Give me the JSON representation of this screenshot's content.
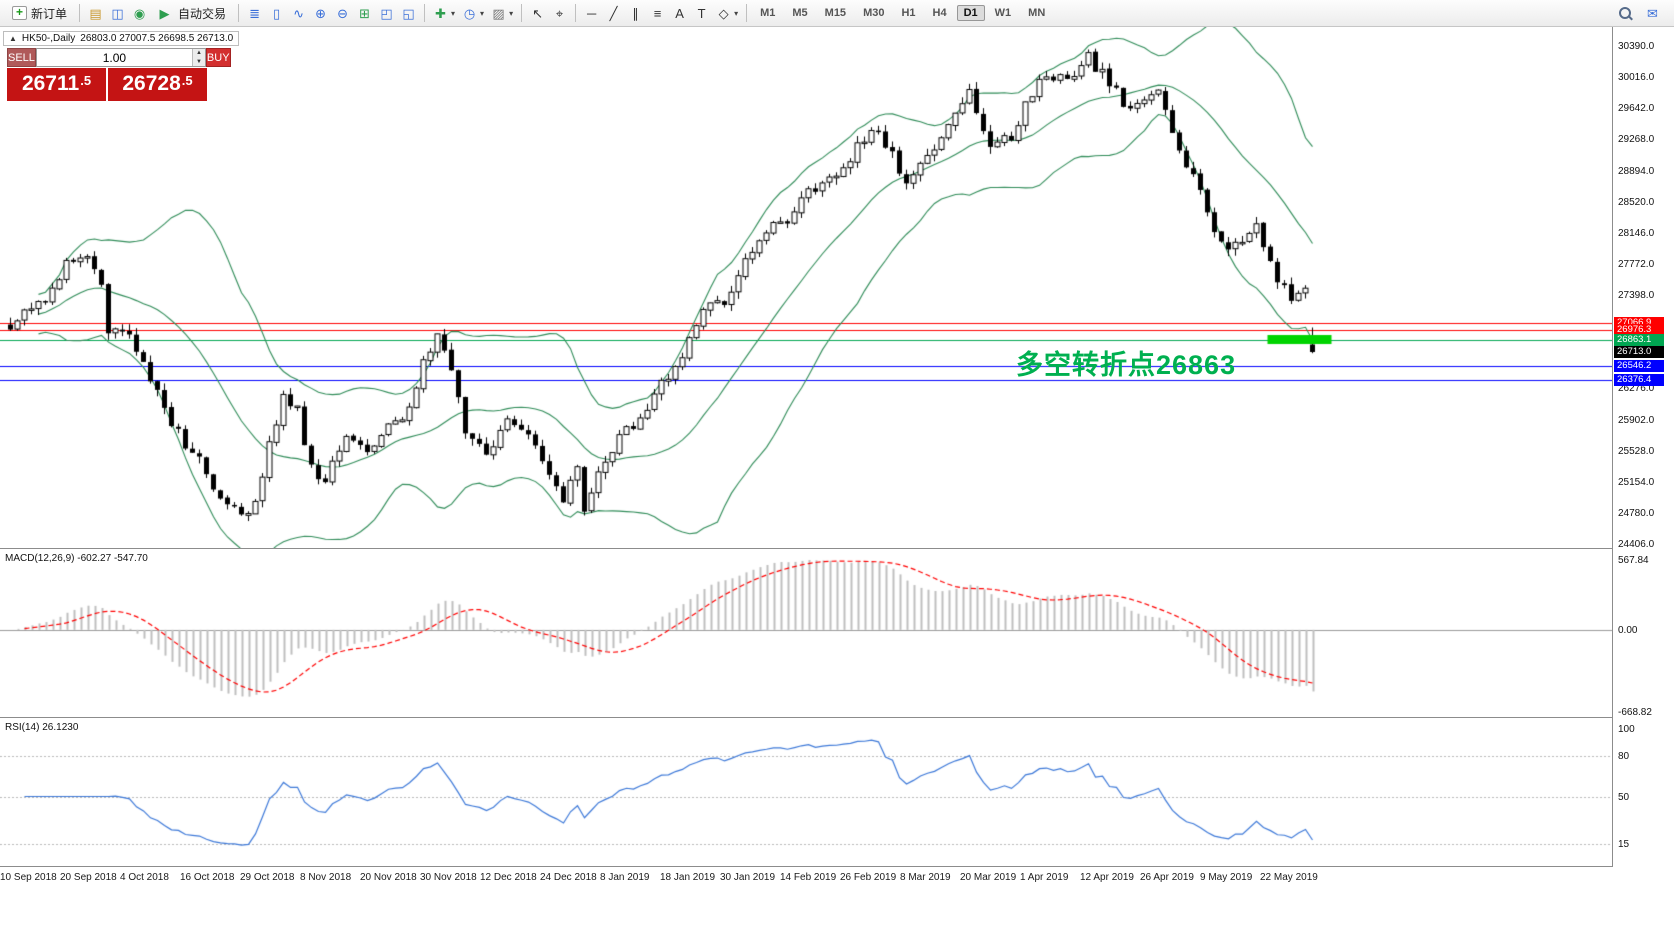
{
  "toolbar": {
    "new_order_label": "新订单",
    "autotrade_label": "自动交易",
    "icon_groups": [
      {
        "id": "tb-g1",
        "items": [
          {
            "name": "market-watch-icon",
            "glyph": "▤",
            "color": "#c9972c"
          },
          {
            "name": "data-window-icon",
            "glyph": "◫",
            "color": "#3a6fd8"
          },
          {
            "name": "navigator-icon",
            "glyph": "◉",
            "color": "#2e9e4f"
          }
        ]
      },
      {
        "id": "tb-g2",
        "items": [
          {
            "name": "bars-chart-icon",
            "glyph": "≣",
            "color": "#3a6fd8"
          },
          {
            "name": "candlestick-chart-icon",
            "glyph": "▯",
            "color": "#3a6fd8"
          },
          {
            "name": "line-chart-icon",
            "glyph": "∿",
            "color": "#3a6fd8"
          },
          {
            "name": "zoom-in-icon",
            "glyph": "⊕",
            "color": "#3a6fd8"
          },
          {
            "name": "zoom-out-icon",
            "glyph": "⊖",
            "color": "#3a6fd8"
          },
          {
            "name": "tile-windows-icon",
            "glyph": "⊞",
            "color": "#2e9e4f"
          },
          {
            "name": "cascade-windows-icon",
            "glyph": "◰",
            "color": "#3a6fd8"
          },
          {
            "name": "tile-vertical-icon",
            "glyph": "◱",
            "color": "#3a6fd8"
          }
        ]
      },
      {
        "id": "tb-g3",
        "items": [
          {
            "name": "indicators-icon",
            "glyph": "✚",
            "color": "#2e9e4f",
            "caret": true
          },
          {
            "name": "periods-icon",
            "glyph": "◷",
            "color": "#3a6fd8",
            "caret": true
          },
          {
            "name": "templates-icon",
            "glyph": "▨",
            "color": "#777777",
            "caret": true
          }
        ]
      },
      {
        "id": "tb-g4",
        "items": [
          {
            "name": "cursor-icon",
            "glyph": "↖",
            "color": "#333333"
          },
          {
            "name": "crosshair-icon",
            "glyph": "⌖",
            "color": "#333333"
          }
        ]
      },
      {
        "id": "tb-g5",
        "items": [
          {
            "name": "horizontal-line-icon",
            "glyph": "─",
            "color": "#333333"
          },
          {
            "name": "trendline-icon",
            "glyph": "╱",
            "color": "#333333"
          },
          {
            "name": "equidistant-channel-icon",
            "glyph": "∥",
            "color": "#333333"
          },
          {
            "name": "fibonacci-icon",
            "glyph": "≡",
            "color": "#333333"
          },
          {
            "name": "text-tool-icon",
            "glyph": "A",
            "color": "#333333"
          },
          {
            "name": "label-tool-icon",
            "glyph": "T",
            "color": "#333333"
          },
          {
            "name": "shapes-icon",
            "glyph": "◇",
            "color": "#333333",
            "caret": true
          }
        ]
      }
    ],
    "right_icons": [
      {
        "name": "search-icon",
        "css": "mag"
      },
      {
        "name": "messages-icon",
        "glyph": "✉",
        "color": "#3a6fd8"
      }
    ],
    "timeframes": [
      "M1",
      "M5",
      "M15",
      "M30",
      "H1",
      "H4",
      "D1",
      "W1",
      "MN"
    ],
    "active_timeframe": "D1"
  },
  "chart": {
    "collapse_glyph": "▲",
    "symbol_period": "HK50-,Daily",
    "ohlc": "26803.0 27007.5 26698.5 26713.0"
  },
  "trade_panel": {
    "sell_label": "SELL",
    "buy_label": "BUY",
    "volume": "1.00",
    "sell_price_main": "26711",
    "sell_price_sup": ".5",
    "buy_price_main": "26728",
    "buy_price_sup": ".5"
  },
  "chart_data": {
    "type": "candlestick",
    "symbol": "HK50-",
    "period": "Daily",
    "ohlc_header": {
      "open": 26803.0,
      "high": 27007.5,
      "low": 26698.5,
      "close": 26713.0
    },
    "last_candle": {
      "o": 26803.0,
      "h": 27007.5,
      "l": 26698.5,
      "c": 26713.0
    },
    "candle_count": 187,
    "render_seed": 20190522,
    "y_axis": {
      "min": 24406.0,
      "max": 30390.0,
      "ticks": [
        {
          "label": "30390.0",
          "value": 30390.0
        },
        {
          "label": "30016.0",
          "value": 30016.0
        },
        {
          "label": "29642.0",
          "value": 29642.0
        },
        {
          "label": "29268.0",
          "value": 29268.0
        },
        {
          "label": "28894.0",
          "value": 28894.0
        },
        {
          "label": "28520.0",
          "value": 28520.0
        },
        {
          "label": "28146.0",
          "value": 28146.0
        },
        {
          "label": "27772.0",
          "value": 27772.0
        },
        {
          "label": "27398.0",
          "value": 27398.0
        },
        {
          "label": "26276.0",
          "value": 26276.0
        },
        {
          "label": "25902.0",
          "value": 25902.0
        },
        {
          "label": "25528.0",
          "value": 25528.0
        },
        {
          "label": "25154.0",
          "value": 25154.0
        },
        {
          "label": "24780.0",
          "value": 24780.0
        },
        {
          "label": "24406.0",
          "value": 24406.0
        }
      ]
    },
    "levels": [
      {
        "label": "27066.9",
        "price": 27066.9,
        "color": "#ff0000"
      },
      {
        "label": "26976.3",
        "price": 26976.3,
        "color": "#ff0000"
      },
      {
        "label": "26863.1",
        "price": 26863.1,
        "color": "#00a651"
      },
      {
        "label": "26546.2",
        "price": 26546.2,
        "color": "#0000ff"
      },
      {
        "label": "26376.4",
        "price": 26376.4,
        "color": "#0000ff"
      }
    ],
    "current_price": {
      "label": "26713.0",
      "price": 26713.0,
      "bg": "#000000"
    },
    "bollinger": {
      "period": 20,
      "deviations": 2,
      "color": "#2e8b57"
    },
    "annotation": {
      "text": "多空转折点26863",
      "color": "#00b050"
    },
    "highlight_bar": {
      "price": 26863,
      "color": "#00d400"
    },
    "price_anchors": [
      [
        0,
        26950
      ],
      [
        2,
        27150
      ],
      [
        5,
        27300
      ],
      [
        8,
        27750
      ],
      [
        11,
        27800
      ],
      [
        13,
        27550
      ],
      [
        14,
        27000
      ],
      [
        17,
        26900
      ],
      [
        20,
        26350
      ],
      [
        23,
        25850
      ],
      [
        27,
        25400
      ],
      [
        30,
        24950
      ],
      [
        33,
        24800
      ],
      [
        35,
        24850
      ],
      [
        37,
        25600
      ],
      [
        39,
        26200
      ],
      [
        41,
        26000
      ],
      [
        43,
        25300
      ],
      [
        45,
        25150
      ],
      [
        48,
        25700
      ],
      [
        51,
        25500
      ],
      [
        54,
        25850
      ],
      [
        57,
        26000
      ],
      [
        59,
        26600
      ],
      [
        61,
        26900
      ],
      [
        63,
        26500
      ],
      [
        65,
        25700
      ],
      [
        68,
        25500
      ],
      [
        71,
        25850
      ],
      [
        74,
        25700
      ],
      [
        77,
        25250
      ],
      [
        79,
        24950
      ],
      [
        81,
        25400
      ],
      [
        82,
        24850
      ],
      [
        84,
        25300
      ],
      [
        87,
        25700
      ],
      [
        90,
        25900
      ],
      [
        93,
        26300
      ],
      [
        96,
        26700
      ],
      [
        99,
        27200
      ],
      [
        102,
        27300
      ],
      [
        105,
        27800
      ],
      [
        108,
        28150
      ],
      [
        111,
        28300
      ],
      [
        114,
        28600
      ],
      [
        117,
        28800
      ],
      [
        120,
        29050
      ],
      [
        123,
        29400
      ],
      [
        126,
        29100
      ],
      [
        128,
        28750
      ],
      [
        131,
        29000
      ],
      [
        134,
        29500
      ],
      [
        137,
        29800
      ],
      [
        140,
        29150
      ],
      [
        143,
        29300
      ],
      [
        146,
        29850
      ],
      [
        149,
        30050
      ],
      [
        152,
        29950
      ],
      [
        154,
        30250
      ],
      [
        156,
        30050
      ],
      [
        158,
        29850
      ],
      [
        160,
        29600
      ],
      [
        162,
        29750
      ],
      [
        164,
        29850
      ],
      [
        166,
        29300
      ],
      [
        168,
        29000
      ],
      [
        170,
        28600
      ],
      [
        172,
        28150
      ],
      [
        174,
        27900
      ],
      [
        176,
        28050
      ],
      [
        178,
        28200
      ],
      [
        180,
        27800
      ],
      [
        182,
        27450
      ],
      [
        184,
        27350
      ],
      [
        185,
        27450
      ],
      [
        186,
        26803
      ]
    ],
    "x_axis_dates": [
      "10 Sep 2018",
      "20 Sep 2018",
      "4 Oct 2018",
      "16 Oct 2018",
      "29 Oct 2018",
      "8 Nov 2018",
      "20 Nov 2018",
      "30 Nov 2018",
      "12 Dec 2018",
      "24 Dec 2018",
      "8 Jan 2019",
      "18 Jan 2019",
      "30 Jan 2019",
      "14 Feb 2019",
      "26 Feb 2019",
      "8 Mar 2019",
      "20 Mar 2019",
      "1 Apr 2019",
      "12 Apr 2019",
      "26 Apr 2019",
      "9 May 2019",
      "22 May 2019"
    ],
    "macd": {
      "label": "MACD(12,26,9) -602.27 -547.70",
      "fast": 12,
      "slow": 26,
      "signal_period": 9,
      "value": -602.27,
      "signal_value": -547.7,
      "axis_ticks": [
        {
          "label": "567.84",
          "value": 567.84
        },
        {
          "label": "0.00",
          "value": 0
        },
        {
          "label": "-668.82",
          "value": -668.82
        }
      ],
      "histogram_color": "#bfbfbf",
      "signal_color": "#ff0000"
    },
    "rsi": {
      "label": "RSI(14) 26.1230",
      "period": 14,
      "value": 26.123,
      "axis_ticks": [
        {
          "label": "100",
          "value": 100
        },
        {
          "label": "80",
          "value": 80
        },
        {
          "label": "50",
          "value": 50
        },
        {
          "label": "15",
          "value": 15
        }
      ],
      "levels": [
        80,
        50,
        15
      ],
      "color": "#3c78d8"
    }
  }
}
